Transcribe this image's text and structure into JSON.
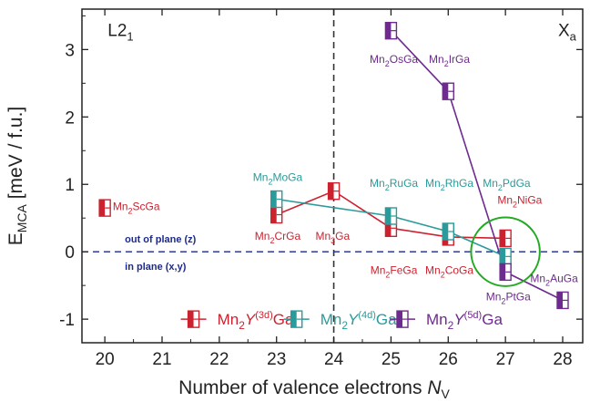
{
  "chart_data": {
    "type": "scatter",
    "xlabel": "Number of valence electrons",
    "xlabel_symbol": "N",
    "xlabel_sub": "V",
    "ylabel": "E",
    "ylabel_sub": "MCA",
    "ylabel_unit": "[meV / f.u.]",
    "xlim": [
      19.6,
      28.35
    ],
    "ylim": [
      -1.35,
      3.6
    ],
    "xticks": [
      20,
      21,
      22,
      23,
      24,
      25,
      26,
      27,
      28
    ],
    "yticks": [
      -1,
      0,
      1,
      2,
      3
    ],
    "region_labels": [
      {
        "text": "L2",
        "sub": "1",
        "x": 20.05,
        "y": 3.2
      },
      {
        "text": "X",
        "sub": "a",
        "x": 27.92,
        "y": 3.2
      }
    ],
    "divider_x": 24,
    "reference_line": {
      "y": 0,
      "label_above": "out of plane (z)",
      "label_below": "in plane (x,y)",
      "color": "#1c2a8c"
    },
    "colors": {
      "3d": "#cc2230",
      "4d": "#2a9a9a",
      "5d": "#6e2a8e"
    },
    "series": [
      {
        "name_parts": [
          "Mn",
          "2",
          "Y",
          "(3d)",
          "Ga"
        ],
        "key": "3d",
        "points": [
          {
            "x": 20,
            "y": 0.65,
            "label": [
              "Mn",
              "2",
              "ScGa"
            ],
            "lx": 20.55,
            "ly": 0.62
          },
          {
            "x": 23,
            "y": 0.55,
            "label": [
              "Mn",
              "2",
              "CrGa"
            ],
            "lx": 23.02,
            "ly": 0.18
          },
          {
            "x": 24,
            "y": 0.9,
            "label": [
              "Mn",
              "3",
              "Ga"
            ],
            "lx": 23.98,
            "ly": 0.18
          },
          {
            "x": 25,
            "y": 0.35,
            "label": [
              "Mn",
              "2",
              "FeGa"
            ],
            "lx": 25.05,
            "ly": -0.33
          },
          {
            "x": 26,
            "y": 0.22,
            "label": [
              "Mn",
              "2",
              "CoGa"
            ],
            "lx": 26.02,
            "ly": -0.33
          },
          {
            "x": 27,
            "y": 0.2,
            "label": [
              "Mn",
              "2",
              "NiGa"
            ],
            "lx": 27.25,
            "ly": 0.71
          }
        ],
        "line_from_index": 1
      },
      {
        "name_parts": [
          "Mn",
          "2",
          "Y",
          "(4d)",
          "Ga"
        ],
        "key": "4d",
        "points": [
          {
            "x": 23,
            "y": 0.78,
            "label": [
              "Mn",
              "2",
              "MoGa"
            ],
            "lx": 23.02,
            "ly": 1.05
          },
          {
            "x": 25,
            "y": 0.53,
            "label": [
              "Mn",
              "2",
              "RuGa"
            ],
            "lx": 25.05,
            "ly": 0.96
          },
          {
            "x": 26,
            "y": 0.3,
            "label": [
              "Mn",
              "2",
              "RhGa"
            ],
            "lx": 26.02,
            "ly": 0.96
          },
          {
            "x": 27,
            "y": -0.07,
            "label": [
              "Mn",
              "2",
              "PdGa"
            ],
            "lx": 27.02,
            "ly": 0.96
          }
        ],
        "line_from_index": 0
      },
      {
        "name_parts": [
          "Mn",
          "2",
          "Y",
          "(5d)",
          "Ga"
        ],
        "key": "5d",
        "points": [
          {
            "x": 25,
            "y": 3.28,
            "label": [
              "Mn",
              "2",
              "OsGa"
            ],
            "lx": 25.05,
            "ly": 2.8
          },
          {
            "x": 26,
            "y": 2.38,
            "label": [
              "Mn",
              "2",
              "IrGa"
            ],
            "lx": 26.02,
            "ly": 2.8
          },
          {
            "x": 27,
            "y": -0.3,
            "label": [
              "Mn",
              "2",
              "PtGa"
            ],
            "lx": 27.05,
            "ly": -0.72
          },
          {
            "x": 28,
            "y": -0.72,
            "label": [
              "Mn",
              "2",
              "AuGa"
            ],
            "lx": 27.85,
            "ly": -0.45
          }
        ],
        "line_from_index": 0
      }
    ],
    "highlight_circle": {
      "x": 27,
      "y": 0.0,
      "r_x": 0.6,
      "color": "#22aa22"
    },
    "legend_position": "bottom-center"
  }
}
